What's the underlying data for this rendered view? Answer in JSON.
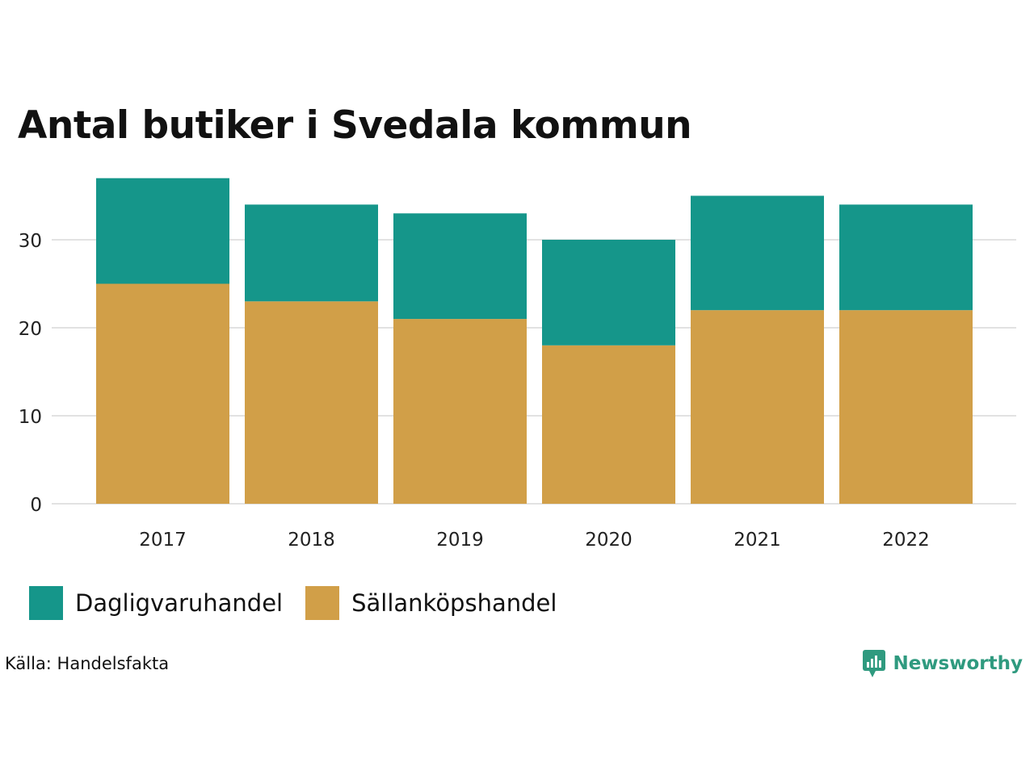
{
  "title": "Antal butiker i Svedala kommun",
  "source": "Källa: Handelsfakta",
  "brand": "Newsworthy",
  "colors": {
    "dagligvaruhandel": "#15968a",
    "sallankopshandel": "#d19f48",
    "grid": "#e2e2e2",
    "brand": "#2f9a7f"
  },
  "chart_data": {
    "type": "bar",
    "stacked": true,
    "title": "Antal butiker i Svedala kommun",
    "xlabel": "",
    "ylabel": "",
    "ylim": [
      0,
      37
    ],
    "yticks": [
      0,
      10,
      20,
      30
    ],
    "categories": [
      "2017",
      "2018",
      "2019",
      "2020",
      "2021",
      "2022"
    ],
    "series": [
      {
        "name": "Sällanköpshandel",
        "values": [
          25,
          23,
          21,
          18,
          22,
          22
        ]
      },
      {
        "name": "Dagligvaruhandel",
        "values": [
          12,
          11,
          12,
          12,
          13,
          12
        ]
      }
    ],
    "legend": [
      "Dagligvaruhandel",
      "Sällanköpshandel"
    ],
    "grid": true,
    "legend_position": "bottom-left"
  }
}
